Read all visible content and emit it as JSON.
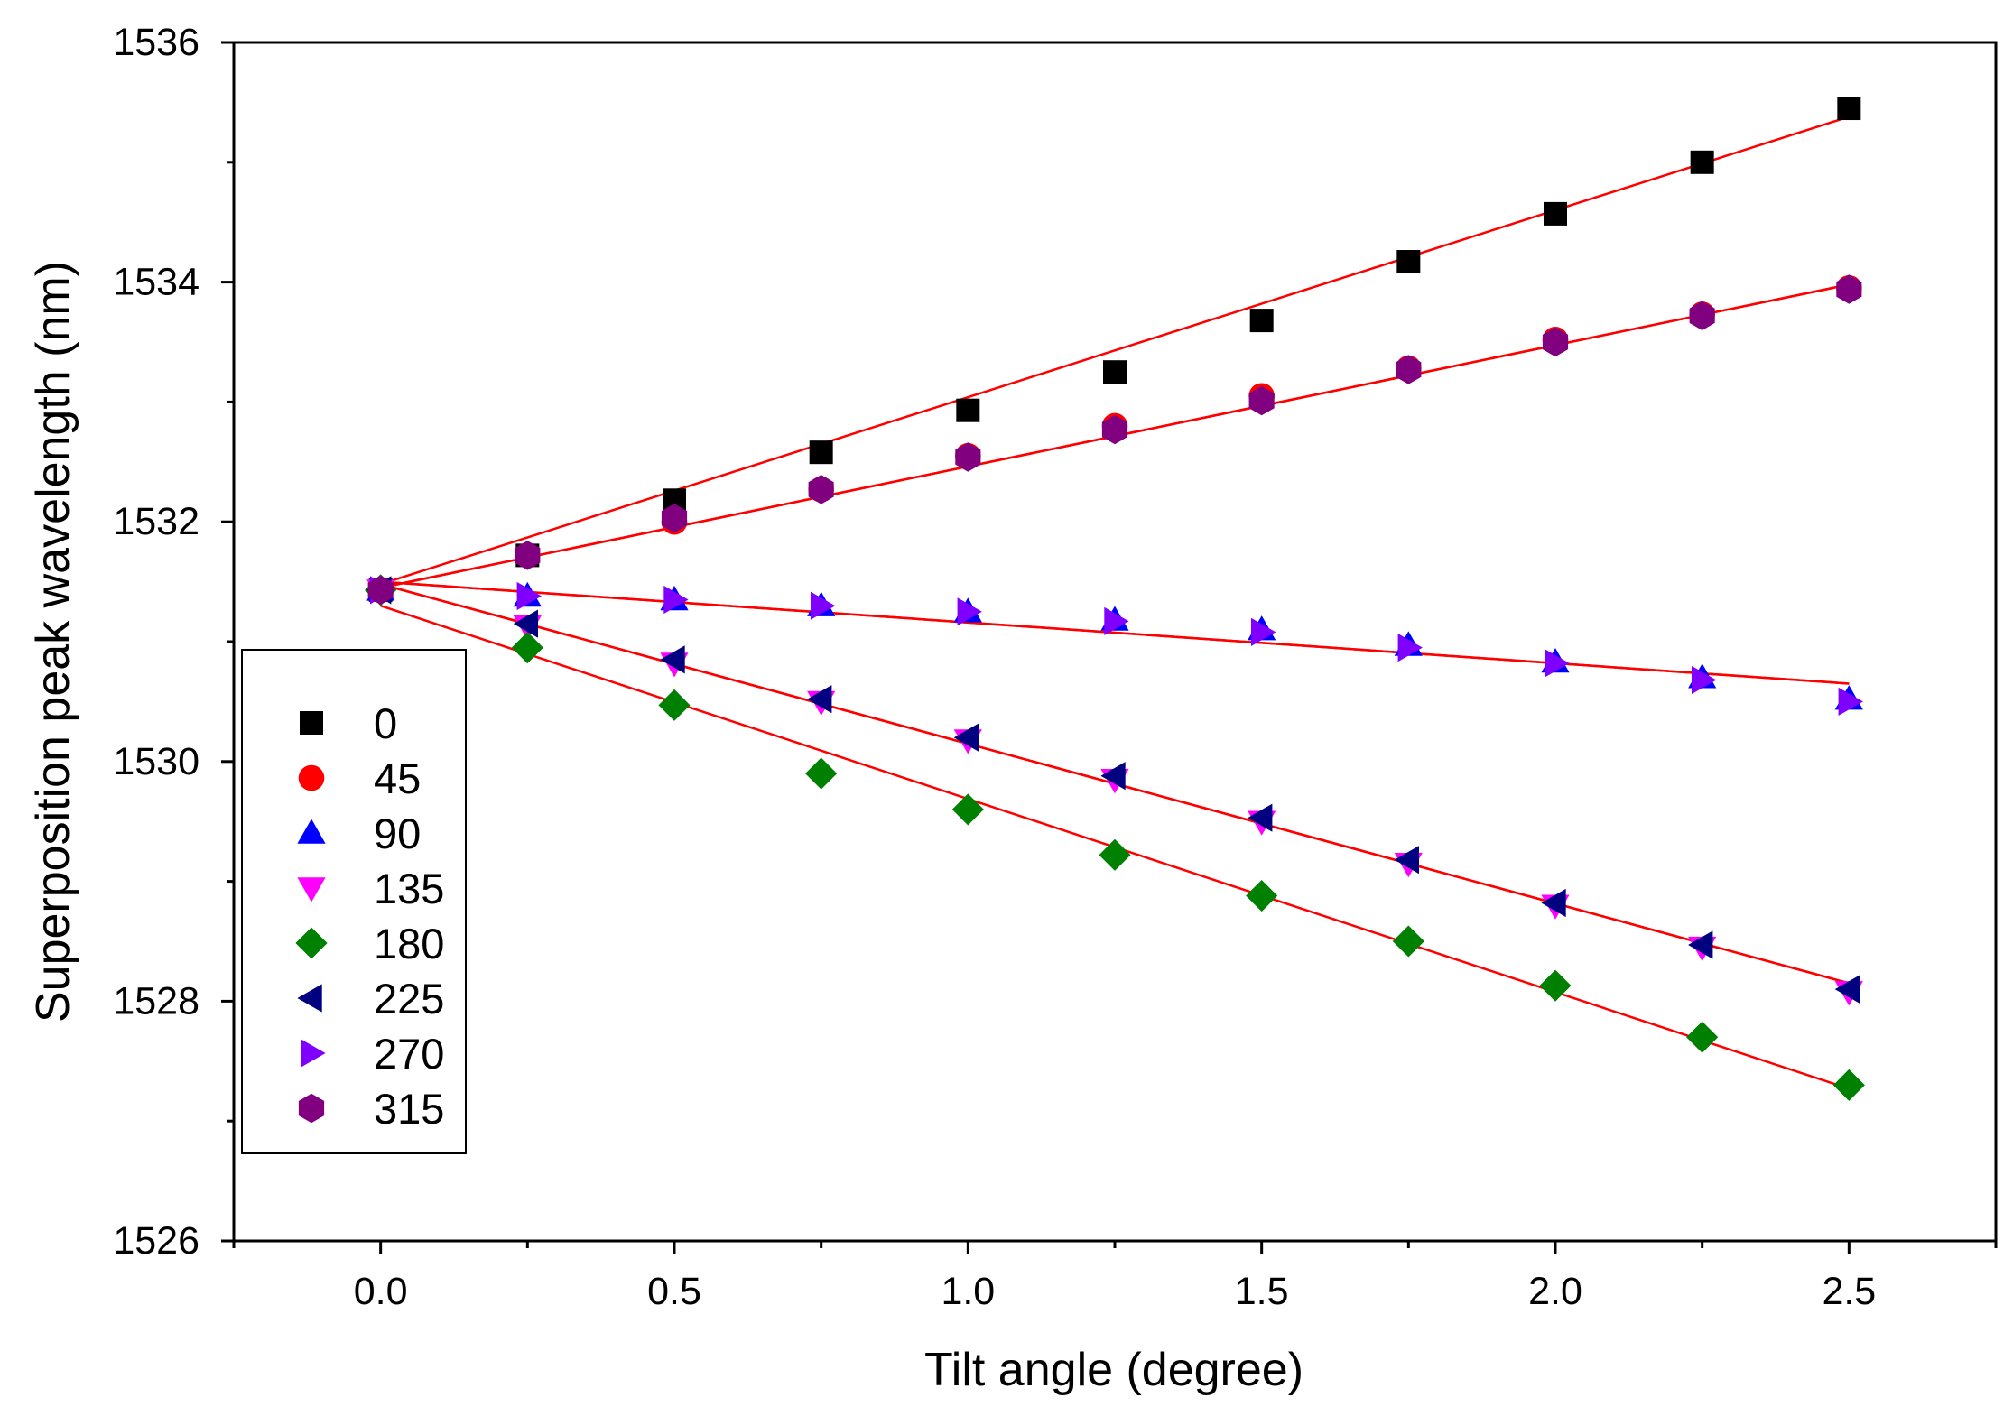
{
  "chart_data": {
    "type": "scatter",
    "title": "",
    "xlabel": "Tilt angle (degree)",
    "ylabel": "Superposition peak wavelength (nm)",
    "xlim": [
      -0.25,
      2.75
    ],
    "ylim": [
      1526,
      1536
    ],
    "x_ticks": [
      0.0,
      0.5,
      1.0,
      1.5,
      2.0,
      2.5
    ],
    "x_tick_labels": [
      "0.0",
      "0.5",
      "1.0",
      "1.5",
      "2.0",
      "2.5"
    ],
    "y_ticks": [
      1526,
      1528,
      1530,
      1532,
      1534,
      1536
    ],
    "y_tick_labels": [
      "1526",
      "1528",
      "1530",
      "1532",
      "1534",
      "1536"
    ],
    "grid": false,
    "legend_position": "middle-left",
    "fit_color": "#ff0000",
    "x": [
      0.0,
      0.25,
      0.5,
      0.75,
      1.0,
      1.25,
      1.5,
      1.75,
      2.0,
      2.25,
      2.5
    ],
    "series": [
      {
        "name": "0",
        "marker": "square",
        "color": "#000000",
        "values": [
          1531.43,
          1531.72,
          1532.18,
          1532.58,
          1532.93,
          1533.25,
          1533.68,
          1534.17,
          1534.57,
          1535.0,
          1535.45
        ],
        "fit": [
          1531.48,
          1535.38
        ]
      },
      {
        "name": "45",
        "marker": "circle",
        "color": "#ff0000",
        "values": [
          1531.43,
          1531.72,
          1532.0,
          1532.27,
          1532.55,
          1532.8,
          1533.05,
          1533.28,
          1533.52,
          1533.73,
          1533.95
        ],
        "fit": [
          1531.45,
          1533.98
        ]
      },
      {
        "name": "90",
        "marker": "triangle-up",
        "color": "#0000ff",
        "values": [
          1531.43,
          1531.38,
          1531.35,
          1531.3,
          1531.25,
          1531.18,
          1531.1,
          1530.97,
          1530.83,
          1530.7,
          1530.52
        ],
        "fit": [
          1531.5,
          1530.65
        ]
      },
      {
        "name": "135",
        "marker": "triangle-down",
        "color": "#ff00ff",
        "values": [
          1531.43,
          1531.13,
          1530.82,
          1530.5,
          1530.18,
          1529.85,
          1529.5,
          1529.15,
          1528.8,
          1528.45,
          1528.08
        ],
        "fit": [
          1531.48,
          1528.15
        ]
      },
      {
        "name": "180",
        "marker": "diamond",
        "color": "#008000",
        "values": [
          1531.43,
          1530.95,
          1530.47,
          1529.9,
          1529.6,
          1529.22,
          1528.88,
          1528.5,
          1528.13,
          1527.7,
          1527.3
        ],
        "fit": [
          1531.3,
          1527.27
        ]
      },
      {
        "name": "225",
        "marker": "triangle-left",
        "color": "#000080",
        "values": [
          1531.43,
          1531.15,
          1530.85,
          1530.52,
          1530.2,
          1529.88,
          1529.53,
          1529.18,
          1528.82,
          1528.47,
          1528.1
        ],
        "fit": [
          1531.48,
          1528.15
        ]
      },
      {
        "name": "270",
        "marker": "triangle-right",
        "color": "#8000ff",
        "values": [
          1531.43,
          1531.38,
          1531.35,
          1531.3,
          1531.25,
          1531.17,
          1531.08,
          1530.95,
          1530.82,
          1530.68,
          1530.5
        ],
        "fit": [
          1531.5,
          1530.65
        ]
      },
      {
        "name": "315",
        "marker": "hexagon",
        "color": "#800080",
        "values": [
          1531.43,
          1531.72,
          1532.03,
          1532.27,
          1532.54,
          1532.77,
          1533.01,
          1533.27,
          1533.5,
          1533.72,
          1533.94
        ],
        "fit": [
          1531.45,
          1533.98
        ]
      }
    ]
  }
}
